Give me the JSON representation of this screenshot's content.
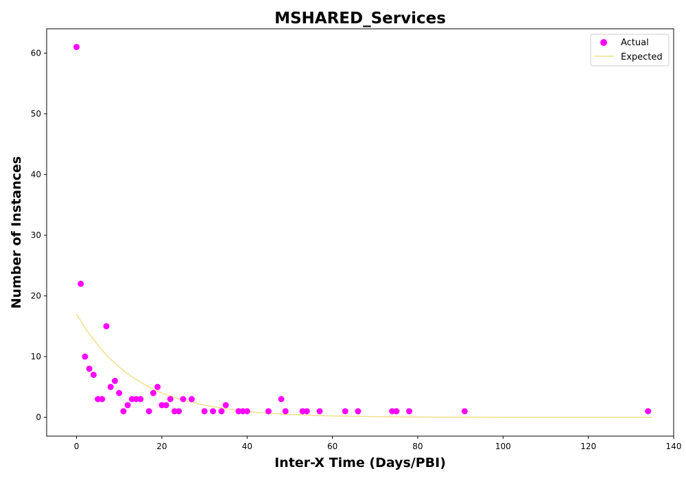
{
  "chart_data": {
    "type": "scatter",
    "title": "MSHARED_Services",
    "xlabel": "Inter-X Time (Days/PBI)",
    "ylabel": "Number of Instances",
    "xlim": [
      -7,
      140
    ],
    "ylim": [
      -3.1,
      64
    ],
    "xticks": [
      0,
      20,
      40,
      60,
      80,
      100,
      120,
      140
    ],
    "yticks": [
      0,
      10,
      20,
      30,
      40,
      50,
      60
    ],
    "legend_position": "upper-right",
    "series": [
      {
        "name": "Actual",
        "kind": "scatter",
        "color": "#ff00ff",
        "x": [
          0,
          1,
          2,
          3,
          4,
          5,
          6,
          7,
          8,
          9,
          10,
          11,
          12,
          13,
          14,
          15,
          17,
          18,
          19,
          20,
          21,
          22,
          23,
          24,
          25,
          27,
          30,
          32,
          34,
          35,
          38,
          39,
          40,
          45,
          48,
          49,
          53,
          54,
          57,
          63,
          66,
          74,
          75,
          78,
          91,
          134
        ],
        "y": [
          61,
          22,
          10,
          8,
          7,
          3,
          3,
          15,
          5,
          6,
          4,
          1,
          2,
          3,
          3,
          3,
          1,
          4,
          5,
          2,
          2,
          3,
          1,
          1,
          3,
          3,
          1,
          1,
          1,
          2,
          1,
          1,
          1,
          1,
          3,
          1,
          1,
          1,
          1,
          1,
          1,
          1,
          1,
          1,
          1,
          1
        ]
      },
      {
        "name": "Expected",
        "kind": "line",
        "color": "#f0e08a",
        "x": [
          0,
          2.5,
          5,
          7.5,
          10,
          12.5,
          15,
          17.5,
          20,
          22.5,
          25,
          30,
          35,
          40,
          45,
          50,
          60,
          70,
          80,
          90,
          100,
          110,
          120,
          135
        ],
        "y": [
          17,
          14.2,
          11.9,
          9.9,
          8.3,
          6.9,
          5.8,
          4.8,
          4.0,
          3.4,
          2.8,
          2.0,
          1.4,
          0.95,
          0.66,
          0.46,
          0.22,
          0.11,
          0.05,
          0.03,
          0.01,
          0.01,
          0.0,
          0.0
        ]
      }
    ]
  }
}
